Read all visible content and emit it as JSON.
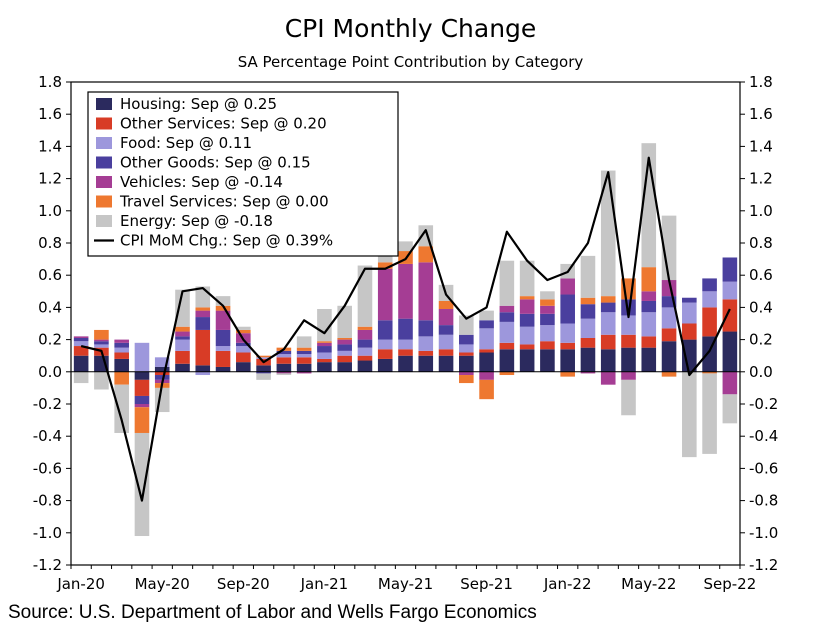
{
  "chart_data": {
    "type": "bar",
    "title": "CPI Monthly Change",
    "subtitle": "SA Percentage Point Contribution by Category",
    "source": "Source: U.S. Department of Labor and Wells Fargo Economics",
    "ylim": [
      -1.2,
      1.8
    ],
    "yticks": [
      "1.8",
      "1.6",
      "1.4",
      "1.2",
      "1.0",
      "0.8",
      "0.6",
      "0.4",
      "0.2",
      "0.0",
      "-0.2",
      "-0.4",
      "-0.6",
      "-0.8",
      "-1.0",
      "-1.2"
    ],
    "ytick_values": [
      1.8,
      1.6,
      1.4,
      1.2,
      1.0,
      0.8,
      0.6,
      0.4,
      0.2,
      0.0,
      -0.2,
      -0.4,
      -0.6,
      -0.8,
      -1.0,
      -1.2
    ],
    "xtick_labels": [
      {
        "label": "Jan-20",
        "index": 0
      },
      {
        "label": "May-20",
        "index": 4
      },
      {
        "label": "Sep-20",
        "index": 8
      },
      {
        "label": "Jan-21",
        "index": 12
      },
      {
        "label": "May-21",
        "index": 16
      },
      {
        "label": "Sep-21",
        "index": 20
      },
      {
        "label": "Jan-22",
        "index": 24
      },
      {
        "label": "May-22",
        "index": 28
      },
      {
        "label": "Sep-22",
        "index": 32
      }
    ],
    "categories": [
      "Jan-20",
      "Feb-20",
      "Mar-20",
      "Apr-20",
      "May-20",
      "Jun-20",
      "Jul-20",
      "Aug-20",
      "Sep-20",
      "Oct-20",
      "Nov-20",
      "Dec-20",
      "Jan-21",
      "Feb-21",
      "Mar-21",
      "Apr-21",
      "May-21",
      "Jun-21",
      "Jul-21",
      "Aug-21",
      "Sep-21",
      "Oct-21",
      "Nov-21",
      "Dec-21",
      "Jan-22",
      "Feb-22",
      "Mar-22",
      "Apr-22",
      "May-22",
      "Jun-22",
      "Jul-22",
      "Aug-22",
      "Sep-22"
    ],
    "legend_position": "top-left",
    "series": [
      {
        "name": "Housing: Sep @ 0.25",
        "color": "#2b2a5e",
        "type": "bar",
        "values": [
          0.1,
          0.1,
          0.08,
          -0.05,
          0.03,
          0.05,
          0.04,
          0.03,
          0.06,
          0.04,
          0.05,
          0.05,
          0.06,
          0.06,
          0.07,
          0.08,
          0.1,
          0.1,
          0.1,
          0.1,
          0.12,
          0.14,
          0.14,
          0.14,
          0.14,
          0.15,
          0.14,
          0.15,
          0.15,
          0.19,
          0.2,
          0.22,
          0.25
        ]
      },
      {
        "name": "Other Services: Sep @ 0.20",
        "color": "#d83c26",
        "type": "bar",
        "values": [
          0.06,
          0.05,
          0.04,
          -0.1,
          -0.02,
          0.08,
          0.22,
          0.1,
          0.06,
          0.04,
          0.04,
          0.04,
          0.02,
          0.04,
          0.03,
          0.06,
          0.04,
          0.03,
          0.04,
          0.02,
          0.02,
          0.04,
          0.03,
          0.05,
          0.04,
          0.06,
          0.09,
          0.08,
          0.07,
          0.08,
          0.1,
          0.18,
          0.2
        ]
      },
      {
        "name": "Food: Sep @ 0.11",
        "color": "#9d97dc",
        "type": "bar",
        "values": [
          0.03,
          0.02,
          0.03,
          0.18,
          0.06,
          0.07,
          -0.02,
          0.03,
          0.04,
          0.01,
          0.02,
          0.02,
          0.04,
          0.03,
          0.05,
          0.06,
          0.06,
          0.09,
          0.09,
          0.05,
          0.13,
          0.13,
          0.11,
          0.1,
          0.12,
          0.12,
          0.14,
          0.12,
          0.15,
          0.13,
          0.13,
          0.1,
          0.11
        ]
      },
      {
        "name": "Other Goods: Sep @ 0.15",
        "color": "#4a3f9e",
        "type": "bar",
        "values": [
          0.02,
          0.02,
          0.03,
          -0.05,
          -0.03,
          0.02,
          0.08,
          0.1,
          0.02,
          -0.01,
          0.02,
          0.02,
          0.04,
          0.04,
          0.05,
          0.12,
          0.13,
          0.1,
          0.06,
          0.06,
          0.05,
          0.06,
          0.08,
          0.07,
          0.18,
          0.09,
          0.06,
          0.1,
          0.07,
          0.07,
          0.03,
          0.08,
          0.15
        ]
      },
      {
        "name": "Vehicles: Sep @ -0.14",
        "color": "#a53d94",
        "type": "bar",
        "values": [
          0.01,
          0.01,
          0.02,
          -0.02,
          -0.02,
          0.03,
          0.04,
          0.12,
          0.06,
          0.0,
          -0.01,
          -0.01,
          0.02,
          0.03,
          0.06,
          0.32,
          0.34,
          0.36,
          0.1,
          -0.02,
          -0.05,
          0.04,
          0.09,
          0.05,
          0.1,
          -0.01,
          -0.08,
          -0.05,
          0.06,
          0.1,
          0.0,
          0.0,
          -0.14
        ]
      },
      {
        "name": "Travel Services: Sep @ 0.00",
        "color": "#ee7830",
        "type": "bar",
        "values": [
          0.0,
          0.06,
          -0.08,
          -0.16,
          -0.03,
          0.03,
          0.02,
          0.03,
          0.02,
          0.01,
          0.02,
          0.02,
          0.01,
          0.01,
          0.02,
          0.04,
          0.08,
          0.1,
          0.05,
          -0.05,
          -0.12,
          -0.02,
          0.02,
          0.04,
          -0.03,
          0.04,
          0.04,
          0.13,
          0.15,
          -0.03,
          0.0,
          -0.01,
          0.0
        ]
      },
      {
        "name": "Energy: Sep @ -0.18",
        "color": "#c6c6c6",
        "type": "bar",
        "values": [
          -0.07,
          -0.11,
          -0.3,
          -0.64,
          -0.15,
          0.23,
          0.13,
          0.06,
          0.02,
          -0.04,
          -0.01,
          0.07,
          0.2,
          0.2,
          0.38,
          0.12,
          0.06,
          0.13,
          0.1,
          0.12,
          0.06,
          0.28,
          0.22,
          0.05,
          0.09,
          0.26,
          0.78,
          -0.22,
          0.77,
          0.4,
          -0.53,
          -0.5,
          -0.18
        ]
      },
      {
        "name": "CPI MoM Chg.: Sep @ 0.39%",
        "color": "#000000",
        "type": "line",
        "values": [
          0.16,
          0.13,
          -0.3,
          -0.8,
          -0.07,
          0.5,
          0.52,
          0.41,
          0.2,
          0.06,
          0.14,
          0.32,
          0.24,
          0.41,
          0.64,
          0.64,
          0.7,
          0.88,
          0.48,
          0.33,
          0.4,
          0.87,
          0.69,
          0.57,
          0.62,
          0.8,
          1.24,
          0.34,
          1.33,
          0.57,
          -0.02,
          0.13,
          0.39
        ]
      }
    ]
  }
}
